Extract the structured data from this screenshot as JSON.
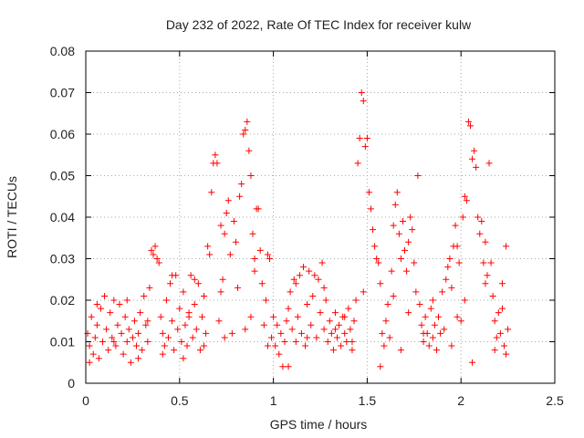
{
  "chart_data": {
    "type": "scatter",
    "title": "Day 232 of 2022, Rate Of TEC Index for receiver kulw",
    "xlabel": "GPS time / hours",
    "ylabel": "ROTI / TECUs",
    "xlim": [
      0,
      2.5
    ],
    "ylim": [
      0,
      0.08
    ],
    "x_ticks": [
      0,
      0.5,
      1,
      1.5,
      2,
      2.5
    ],
    "x_tick_labels": [
      "0",
      "0.5",
      "1",
      "1.5",
      "2",
      "2.5"
    ],
    "y_ticks": [
      0,
      0.01,
      0.02,
      0.03,
      0.04,
      0.05,
      0.06,
      0.07,
      0.08
    ],
    "y_tick_labels": [
      "0",
      "0.01",
      "0.02",
      "0.03",
      "0.04",
      "0.05",
      "0.06",
      "0.07",
      "0.08"
    ],
    "grid": true,
    "marker": "plus",
    "color": "#ff0000",
    "series": [
      {
        "points": [
          [
            0.01,
            0.012
          ],
          [
            0.02,
            0.009
          ],
          [
            0.03,
            0.016
          ],
          [
            0.04,
            0.007
          ],
          [
            0.05,
            0.011
          ],
          [
            0.06,
            0.014
          ],
          [
            0.07,
            0.006
          ],
          [
            0.08,
            0.018
          ],
          [
            0.09,
            0.01
          ],
          [
            0.1,
            0.021
          ],
          [
            0.11,
            0.013
          ],
          [
            0.12,
            0.008
          ],
          [
            0.13,
            0.017
          ],
          [
            0.14,
            0.011
          ],
          [
            0.15,
            0.02
          ],
          [
            0.16,
            0.009
          ],
          [
            0.17,
            0.014
          ],
          [
            0.18,
            0.019
          ],
          [
            0.19,
            0.012
          ],
          [
            0.2,
            0.007
          ],
          [
            0.21,
            0.016
          ],
          [
            0.22,
            0.01
          ],
          [
            0.23,
            0.013
          ],
          [
            0.24,
            0.005
          ],
          [
            0.25,
            0.011
          ],
          [
            0.26,
            0.015
          ],
          [
            0.27,
            0.009
          ],
          [
            0.28,
            0.012
          ],
          [
            0.29,
            0.017
          ],
          [
            0.3,
            0.008
          ],
          [
            0.31,
            0.021
          ],
          [
            0.32,
            0.014
          ],
          [
            0.33,
            0.01
          ],
          [
            0.34,
            0.023
          ],
          [
            0.35,
            0.032
          ],
          [
            0.36,
            0.031
          ],
          [
            0.37,
            0.033
          ],
          [
            0.38,
            0.03
          ],
          [
            0.39,
            0.029
          ],
          [
            0.4,
            0.016
          ],
          [
            0.41,
            0.012
          ],
          [
            0.42,
            0.009
          ],
          [
            0.43,
            0.02
          ],
          [
            0.44,
            0.011
          ],
          [
            0.45,
            0.024
          ],
          [
            0.46,
            0.015
          ],
          [
            0.47,
            0.008
          ],
          [
            0.48,
            0.026
          ],
          [
            0.49,
            0.013
          ],
          [
            0.5,
            0.018
          ],
          [
            0.51,
            0.01
          ],
          [
            0.52,
            0.022
          ],
          [
            0.53,
            0.014
          ],
          [
            0.54,
            0.009
          ],
          [
            0.55,
            0.017
          ],
          [
            0.56,
            0.026
          ],
          [
            0.57,
            0.011
          ],
          [
            0.58,
            0.019
          ],
          [
            0.59,
            0.013
          ],
          [
            0.6,
            0.024
          ],
          [
            0.61,
            0.008
          ],
          [
            0.62,
            0.016
          ],
          [
            0.63,
            0.021
          ],
          [
            0.64,
            0.012
          ],
          [
            0.65,
            0.033
          ],
          [
            0.66,
            0.031
          ],
          [
            0.67,
            0.046
          ],
          [
            0.68,
            0.053
          ],
          [
            0.69,
            0.055
          ],
          [
            0.7,
            0.053
          ],
          [
            0.71,
            0.015
          ],
          [
            0.72,
            0.038
          ],
          [
            0.73,
            0.025
          ],
          [
            0.74,
            0.036
          ],
          [
            0.75,
            0.041
          ],
          [
            0.76,
            0.044
          ],
          [
            0.77,
            0.031
          ],
          [
            0.78,
            0.012
          ],
          [
            0.79,
            0.039
          ],
          [
            0.8,
            0.034
          ],
          [
            0.81,
            0.023
          ],
          [
            0.82,
            0.045
          ],
          [
            0.83,
            0.048
          ],
          [
            0.84,
            0.06
          ],
          [
            0.85,
            0.061
          ],
          [
            0.86,
            0.063
          ],
          [
            0.87,
            0.056
          ],
          [
            0.88,
            0.05
          ],
          [
            0.89,
            0.036
          ],
          [
            0.9,
            0.03
          ],
          [
            0.91,
            0.042
          ],
          [
            0.92,
            0.042
          ],
          [
            0.93,
            0.032
          ],
          [
            0.94,
            0.024
          ],
          [
            0.95,
            0.014
          ],
          [
            0.96,
            0.02
          ],
          [
            0.97,
            0.031
          ],
          [
            0.98,
            0.03
          ],
          [
            0.99,
            0.011
          ],
          [
            1.0,
            0.016
          ],
          [
            1.01,
            0.009
          ],
          [
            1.02,
            0.014
          ],
          [
            1.03,
            0.007
          ],
          [
            1.04,
            0.012
          ],
          [
            1.05,
            0.004
          ],
          [
            1.06,
            0.01
          ],
          [
            1.07,
            0.015
          ],
          [
            1.08,
            0.018
          ],
          [
            1.09,
            0.022
          ],
          [
            1.1,
            0.013
          ],
          [
            1.11,
            0.025
          ],
          [
            1.12,
            0.01
          ],
          [
            1.13,
            0.016
          ],
          [
            1.14,
            0.026
          ],
          [
            1.15,
            0.012
          ],
          [
            1.16,
            0.028
          ],
          [
            1.17,
            0.009
          ],
          [
            1.18,
            0.019
          ],
          [
            1.19,
            0.027
          ],
          [
            1.2,
            0.014
          ],
          [
            1.21,
            0.021
          ],
          [
            1.22,
            0.026
          ],
          [
            1.23,
            0.011
          ],
          [
            1.24,
            0.025
          ],
          [
            1.25,
            0.017
          ],
          [
            1.26,
            0.029
          ],
          [
            1.27,
            0.013
          ],
          [
            1.28,
            0.02
          ],
          [
            1.29,
            0.01
          ],
          [
            1.3,
            0.015
          ],
          [
            1.31,
            0.012
          ],
          [
            1.32,
            0.008
          ],
          [
            1.33,
            0.017
          ],
          [
            1.34,
            0.011
          ],
          [
            1.35,
            0.014
          ],
          [
            1.36,
            0.009
          ],
          [
            1.37,
            0.016
          ],
          [
            1.38,
            0.012
          ],
          [
            1.39,
            0.01
          ],
          [
            1.4,
            0.018
          ],
          [
            1.41,
            0.013
          ],
          [
            1.42,
            0.008
          ],
          [
            1.43,
            0.015
          ],
          [
            1.44,
            0.02
          ],
          [
            1.45,
            0.053
          ],
          [
            1.46,
            0.059
          ],
          [
            1.47,
            0.07
          ],
          [
            1.48,
            0.068
          ],
          [
            1.49,
            0.057
          ],
          [
            1.5,
            0.059
          ],
          [
            1.51,
            0.046
          ],
          [
            1.52,
            0.042
          ],
          [
            1.53,
            0.037
          ],
          [
            1.54,
            0.033
          ],
          [
            1.55,
            0.03
          ],
          [
            1.56,
            0.029
          ],
          [
            1.57,
            0.024
          ],
          [
            1.58,
            0.012
          ],
          [
            1.59,
            0.009
          ],
          [
            1.6,
            0.015
          ],
          [
            1.61,
            0.019
          ],
          [
            1.62,
            0.011
          ],
          [
            1.63,
            0.027
          ],
          [
            1.64,
            0.038
          ],
          [
            1.65,
            0.043
          ],
          [
            1.66,
            0.046
          ],
          [
            1.67,
            0.036
          ],
          [
            1.68,
            0.03
          ],
          [
            1.69,
            0.039
          ],
          [
            1.7,
            0.032
          ],
          [
            1.71,
            0.027
          ],
          [
            1.72,
            0.034
          ],
          [
            1.73,
            0.04
          ],
          [
            1.74,
            0.037
          ],
          [
            1.75,
            0.029
          ],
          [
            1.76,
            0.022
          ],
          [
            1.77,
            0.05
          ],
          [
            1.78,
            0.019
          ],
          [
            1.79,
            0.014
          ],
          [
            1.8,
            0.01
          ],
          [
            1.81,
            0.016
          ],
          [
            1.82,
            0.012
          ],
          [
            1.83,
            0.009
          ],
          [
            1.84,
            0.018
          ],
          [
            1.85,
            0.011
          ],
          [
            1.86,
            0.014
          ],
          [
            1.87,
            0.008
          ],
          [
            1.88,
            0.016
          ],
          [
            1.89,
            0.012
          ],
          [
            1.9,
            0.022
          ],
          [
            1.91,
            0.013
          ],
          [
            1.92,
            0.025
          ],
          [
            1.93,
            0.028
          ],
          [
            1.94,
            0.03
          ],
          [
            1.95,
            0.023
          ],
          [
            1.96,
            0.033
          ],
          [
            1.97,
            0.038
          ],
          [
            1.98,
            0.033
          ],
          [
            1.99,
            0.029
          ],
          [
            2.0,
            0.015
          ],
          [
            2.01,
            0.04
          ],
          [
            2.02,
            0.045
          ],
          [
            2.03,
            0.044
          ],
          [
            2.04,
            0.063
          ],
          [
            2.05,
            0.062
          ],
          [
            2.06,
            0.054
          ],
          [
            2.07,
            0.056
          ],
          [
            2.08,
            0.052
          ],
          [
            2.09,
            0.04
          ],
          [
            2.1,
            0.036
          ],
          [
            2.11,
            0.039
          ],
          [
            2.12,
            0.029
          ],
          [
            2.13,
            0.034
          ],
          [
            2.14,
            0.026
          ],
          [
            2.15,
            0.053
          ],
          [
            2.16,
            0.029
          ],
          [
            2.17,
            0.021
          ],
          [
            2.18,
            0.015
          ],
          [
            2.19,
            0.011
          ],
          [
            2.2,
            0.017
          ],
          [
            2.21,
            0.012
          ],
          [
            2.22,
            0.024
          ],
          [
            2.23,
            0.009
          ],
          [
            2.24,
            0.033
          ],
          [
            2.25,
            0.013
          ],
          [
            0.02,
            0.005
          ],
          [
            0.15,
            0.01
          ],
          [
            0.28,
            0.006
          ],
          [
            0.41,
            0.007
          ],
          [
            0.52,
            0.006
          ],
          [
            0.63,
            0.009
          ],
          [
            0.74,
            0.011
          ],
          [
            0.85,
            0.013
          ],
          [
            0.97,
            0.009
          ],
          [
            1.08,
            0.004
          ],
          [
            1.18,
            0.011
          ],
          [
            1.33,
            0.013
          ],
          [
            1.42,
            0.01
          ],
          [
            1.57,
            0.004
          ],
          [
            1.68,
            0.008
          ],
          [
            1.8,
            0.012
          ],
          [
            1.95,
            0.009
          ],
          [
            2.06,
            0.005
          ],
          [
            2.18,
            0.008
          ],
          [
            2.24,
            0.007
          ],
          [
            0.06,
            0.019
          ],
          [
            0.22,
            0.02
          ],
          [
            0.46,
            0.026
          ],
          [
            0.58,
            0.025
          ],
          [
            0.72,
            0.022
          ],
          [
            0.9,
            0.027
          ],
          [
            1.12,
            0.024
          ],
          [
            1.27,
            0.023
          ],
          [
            1.48,
            0.022
          ],
          [
            1.64,
            0.021
          ],
          [
            1.85,
            0.02
          ],
          [
            2.02,
            0.02
          ],
          [
            2.13,
            0.024
          ],
          [
            0.33,
            0.015
          ],
          [
            0.55,
            0.016
          ],
          [
            1.38,
            0.016
          ],
          [
            1.72,
            0.017
          ],
          [
            1.98,
            0.016
          ],
          [
            2.22,
            0.018
          ],
          [
            0.88,
            0.016
          ]
        ]
      }
    ]
  }
}
